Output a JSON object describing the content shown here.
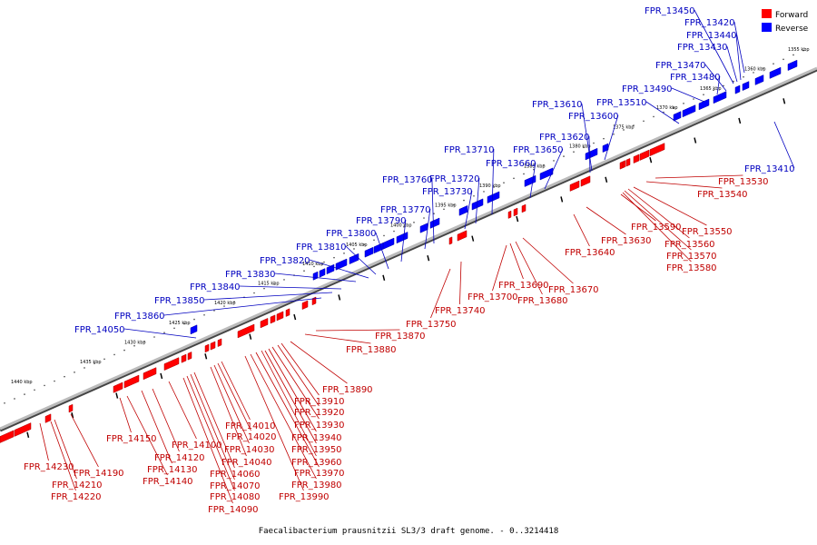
{
  "caption": "Faecalibacterium prausnitzii SL3/3 draft genome. - 0..3214418",
  "legend": [
    {
      "label": "Forward",
      "color": "#ff0000"
    },
    {
      "label": "Reverse",
      "color": "#0000ff"
    }
  ],
  "colors": {
    "forward": "#ff0000",
    "reverse": "#0000ff",
    "forward_label": "#c00000",
    "reverse_label": "#0000c0",
    "backbone": "#999999"
  },
  "kbp_ticks": [
    "1355 kbp",
    "1360 kbp",
    "1365 kbp",
    "1370 kbp",
    "1375 kbp",
    "1380 kbp",
    "1385 kbp",
    "1390 kbp",
    "1395 kbp",
    "1400 kbp",
    "1405 kbp",
    "1410 kbp",
    "1415 kbp",
    "1420 kbp",
    "1425 kbp",
    "1430 kbp",
    "1435 kbp",
    "1440 kbp"
  ],
  "reverse_genes": [
    "FPR_13410",
    "FPR_13420",
    "FPR_13430",
    "FPR_13440",
    "FPR_13450",
    "FPR_13470",
    "FPR_13480",
    "FPR_13490",
    "FPR_13510",
    "FPR_13600",
    "FPR_13610",
    "FPR_13620",
    "FPR_13650",
    "FPR_13660",
    "FPR_13710",
    "FPR_13720",
    "FPR_13730",
    "FPR_13760",
    "FPR_13770",
    "FPR_13790",
    "FPR_13800",
    "FPR_13810",
    "FPR_13820",
    "FPR_13830",
    "FPR_13840",
    "FPR_13850",
    "FPR_13860",
    "FPR_14050"
  ],
  "forward_genes": [
    "FPR_13530",
    "FPR_13540",
    "FPR_13550",
    "FPR_13560",
    "FPR_13570",
    "FPR_13580",
    "FPR_13590",
    "FPR_13630",
    "FPR_13640",
    "FPR_13670",
    "FPR_13680",
    "FPR_13690",
    "FPR_13700",
    "FPR_13740",
    "FPR_13750",
    "FPR_13870",
    "FPR_13880",
    "FPR_13890",
    "FPR_13910",
    "FPR_13920",
    "FPR_13930",
    "FPR_13940",
    "FPR_13950",
    "FPR_13960",
    "FPR_13970",
    "FPR_13980",
    "FPR_13990",
    "FPR_14010",
    "FPR_14020",
    "FPR_14030",
    "FPR_14040",
    "FPR_14060",
    "FPR_14070",
    "FPR_14080",
    "FPR_14090",
    "FPR_14100",
    "FPR_14120",
    "FPR_14130",
    "FPR_14140",
    "FPR_14150",
    "FPR_14190",
    "FPR_14210",
    "FPR_14220",
    "FPR_14230"
  ]
}
